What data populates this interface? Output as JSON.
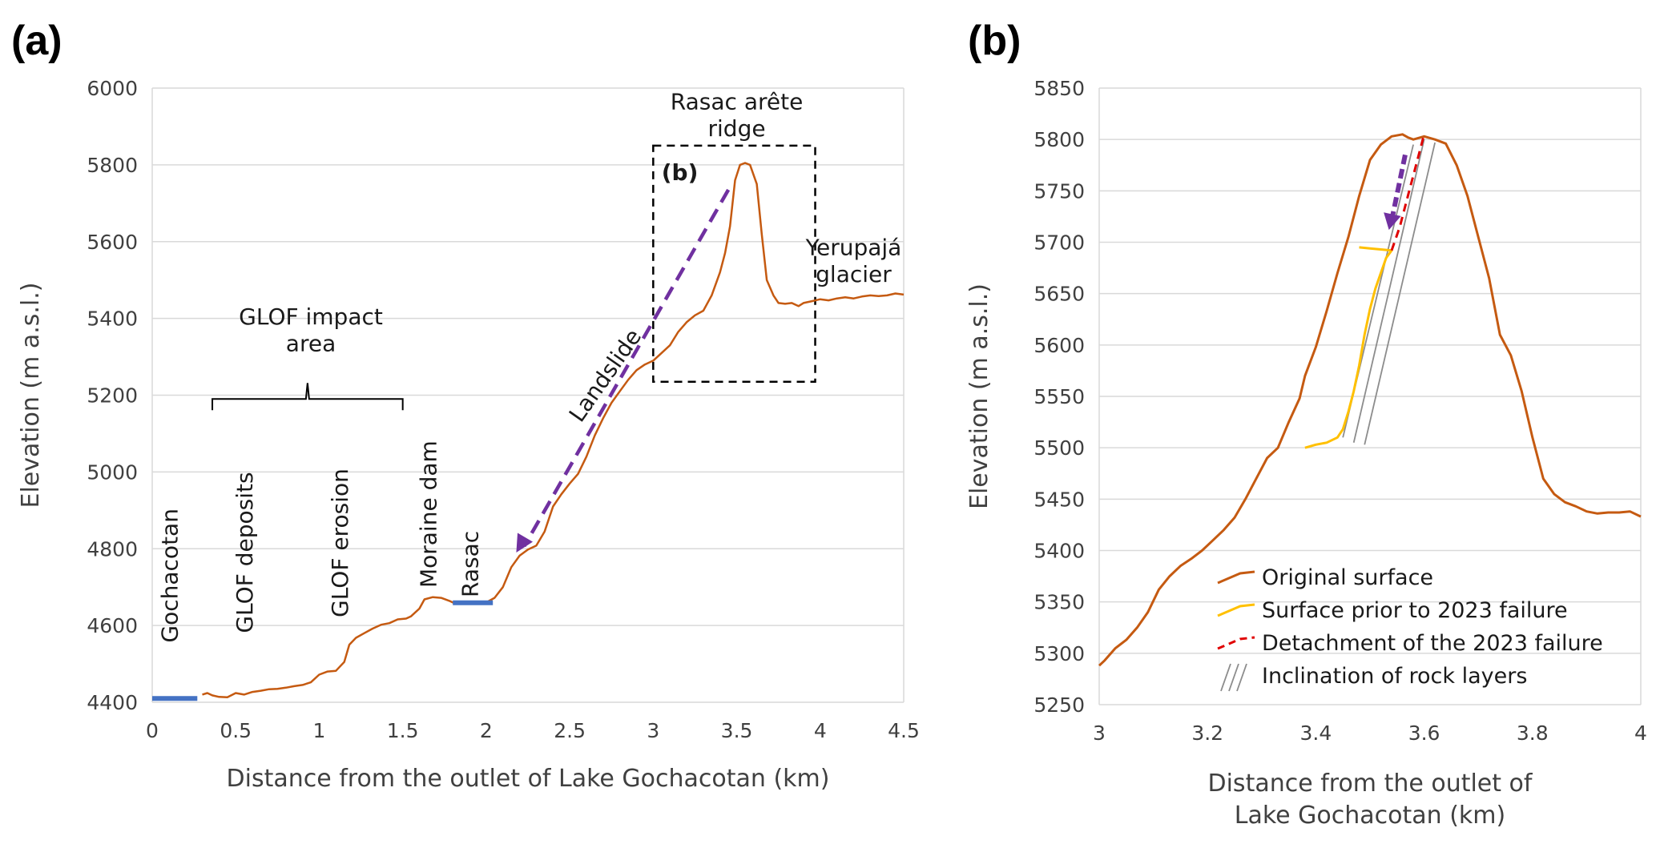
{
  "panels": {
    "a": {
      "label": "(a)"
    },
    "b": {
      "label": "(b)"
    }
  },
  "colors": {
    "original": "#c55a11",
    "prior": "#ffc000",
    "detachment": "#e00000",
    "arrow": "#7030a0",
    "base": "#4472c4",
    "rock": "#8c8c8c"
  },
  "chart_data": [
    {
      "type": "line",
      "xlabel": "Distance from the outlet of Lake Gochacotan (km)",
      "ylabel": "Elevation (m a.s.l.)",
      "xlim": [
        0,
        4.5
      ],
      "ylim": [
        4400,
        6000
      ],
      "xticks": [
        "0",
        "0.5",
        "1",
        "1.5",
        "2",
        "2.5",
        "3",
        "3.5",
        "4",
        "4.5"
      ],
      "yticks": [
        "4400",
        "4600",
        "4800",
        "5000",
        "5200",
        "5400",
        "5600",
        "5800",
        "6000"
      ],
      "grid": "horizontal",
      "series": [
        {
          "name": "",
          "x": [
            0.3,
            0.33,
            0.36,
            0.4,
            0.45,
            0.5,
            0.55,
            0.6,
            0.65,
            0.7,
            0.75,
            0.8,
            0.85,
            0.9,
            0.95,
            1.0,
            1.05,
            1.1,
            1.15,
            1.18,
            1.22,
            1.27,
            1.32,
            1.37,
            1.42,
            1.47,
            1.52,
            1.55,
            1.6,
            1.63,
            1.68,
            1.73,
            1.78,
            1.8,
            1.85,
            1.9,
            1.95,
            2.0,
            2.05,
            2.1,
            2.15,
            2.2,
            2.25,
            2.3,
            2.35,
            2.4,
            2.45,
            2.5,
            2.55,
            2.6,
            2.65,
            2.7,
            2.75,
            2.8,
            2.85,
            2.9,
            2.95,
            3.0,
            3.05,
            3.1,
            3.15,
            3.2,
            3.25,
            3.3,
            3.35,
            3.4,
            3.43,
            3.46,
            3.49,
            3.52,
            3.55,
            3.58,
            3.62,
            3.65,
            3.68,
            3.72,
            3.75,
            3.79,
            3.83,
            3.87,
            3.9,
            3.95,
            4.0,
            4.05,
            4.1,
            4.15,
            4.2,
            4.25,
            4.3,
            4.35,
            4.4,
            4.45,
            4.5
          ],
          "y": [
            4420,
            4424,
            4418,
            4414,
            4413,
            4424,
            4420,
            4427,
            4430,
            4434,
            4435,
            4438,
            4442,
            4445,
            4452,
            4472,
            4480,
            4482,
            4505,
            4550,
            4568,
            4580,
            4592,
            4602,
            4606,
            4616,
            4618,
            4624,
            4644,
            4668,
            4674,
            4672,
            4664,
            4660,
            4660,
            4660,
            4660,
            4660,
            4672,
            4700,
            4752,
            4782,
            4798,
            4808,
            4845,
            4910,
            4942,
            4970,
            4995,
            5040,
            5095,
            5140,
            5180,
            5210,
            5240,
            5265,
            5280,
            5290,
            5310,
            5330,
            5365,
            5390,
            5408,
            5420,
            5460,
            5520,
            5570,
            5640,
            5760,
            5800,
            5805,
            5800,
            5750,
            5620,
            5500,
            5460,
            5440,
            5438,
            5440,
            5432,
            5440,
            5445,
            5450,
            5447,
            5452,
            5455,
            5452,
            5457,
            5460,
            5458,
            5460,
            5465,
            5462
          ]
        },
        {
          "name": "",
          "x": [
            0,
            0.27
          ],
          "y": [
            4410,
            4410
          ]
        },
        {
          "name": "",
          "x": [
            1.8,
            2.04
          ],
          "y": [
            4659,
            4659
          ]
        }
      ],
      "annotations": [
        {
          "text": "Rasac arête",
          "x": 3.5,
          "y": 5945
        },
        {
          "text": "ridge",
          "x": 3.5,
          "y": 5875
        },
        {
          "text": "(b)",
          "x": 3.05,
          "y": 5760
        },
        {
          "text": "Yerupajá",
          "x": 4.2,
          "y": 5565
        },
        {
          "text": "glacier",
          "x": 4.2,
          "y": 5495
        },
        {
          "text": "GLOF impact",
          "x": 0.95,
          "y": 5385
        },
        {
          "text": "area",
          "x": 0.95,
          "y": 5315
        },
        {
          "text": "Landslide",
          "x": 2.75,
          "y": 5240
        },
        {
          "text": "Moraine dam",
          "x": 1.7,
          "y": 4890
        },
        {
          "text": "Rasac",
          "x": 1.95,
          "y": 4760
        },
        {
          "text": "GLOF erosion",
          "x": 1.17,
          "y": 4815
        },
        {
          "text": "GLOF deposits",
          "x": 0.6,
          "y": 4790
        },
        {
          "text": "Gochacotan",
          "x": 0.15,
          "y": 4730
        }
      ]
    },
    {
      "type": "line",
      "xlabel": "Distance from the outlet of",
      "xlabel2": "Lake Gochacotan (km)",
      "ylabel": "Elevation (m a.s.l.)",
      "xlim": [
        3,
        4
      ],
      "ylim": [
        5250,
        5850
      ],
      "xticks": [
        "3",
        "3.2",
        "3.4",
        "3.6",
        "3.8",
        "4"
      ],
      "yticks": [
        "5250",
        "5300",
        "5350",
        "5400",
        "5450",
        "5500",
        "5550",
        "5600",
        "5650",
        "5700",
        "5750",
        "5800",
        "5850"
      ],
      "grid": "horizontal",
      "legend": {
        "position": "bottom-left",
        "entries": [
          "Original surface",
          "Surface prior to 2023 failure",
          "Detachment of the 2023 failure",
          "Inclination of rock layers"
        ]
      },
      "series": [
        {
          "name": "Original surface",
          "x": [
            3.0,
            3.01,
            3.03,
            3.05,
            3.07,
            3.09,
            3.11,
            3.13,
            3.15,
            3.17,
            3.19,
            3.21,
            3.23,
            3.25,
            3.27,
            3.29,
            3.31,
            3.33,
            3.35,
            3.37,
            3.38,
            3.4,
            3.42,
            3.44,
            3.46,
            3.48,
            3.5,
            3.52,
            3.54,
            3.56,
            3.57,
            3.58,
            3.6,
            3.62,
            3.64,
            3.66,
            3.68,
            3.7,
            3.72,
            3.74,
            3.76,
            3.78,
            3.8,
            3.82,
            3.84,
            3.86,
            3.88,
            3.9,
            3.92,
            3.94,
            3.96,
            3.98,
            4.0
          ],
          "y": [
            5288,
            5293,
            5305,
            5313,
            5325,
            5340,
            5362,
            5375,
            5385,
            5392,
            5400,
            5410,
            5420,
            5432,
            5450,
            5470,
            5490,
            5500,
            5525,
            5548,
            5570,
            5598,
            5633,
            5670,
            5705,
            5745,
            5780,
            5795,
            5803,
            5805,
            5802,
            5800,
            5803,
            5800,
            5796,
            5775,
            5745,
            5705,
            5665,
            5610,
            5590,
            5555,
            5510,
            5470,
            5455,
            5447,
            5443,
            5438,
            5436,
            5437,
            5437,
            5438,
            5433
          ]
        },
        {
          "name": "Surface prior to 2023 failure",
          "x": [
            3.38,
            3.4,
            3.42,
            3.44,
            3.45,
            3.46,
            3.47,
            3.48,
            3.49,
            3.5,
            3.51,
            3.52,
            3.53,
            3.54,
            3.52,
            3.5,
            3.48
          ],
          "y": [
            5500,
            5503,
            5505,
            5510,
            5518,
            5535,
            5555,
            5580,
            5610,
            5635,
            5655,
            5670,
            5685,
            5692,
            5693,
            5694,
            5695
          ]
        },
        {
          "name": "Detachment of the 2023 failure",
          "x": [
            3.54,
            3.555,
            3.57,
            3.585,
            3.6
          ],
          "y": [
            5692,
            5715,
            5745,
            5775,
            5805
          ]
        }
      ],
      "rock_layers": [
        {
          "x": [
            3.45,
            3.58
          ],
          "y": [
            5510,
            5795
          ]
        },
        {
          "x": [
            3.47,
            3.6
          ],
          "y": [
            5505,
            5800
          ]
        },
        {
          "x": [
            3.49,
            3.62
          ],
          "y": [
            5503,
            5797
          ]
        }
      ]
    }
  ]
}
